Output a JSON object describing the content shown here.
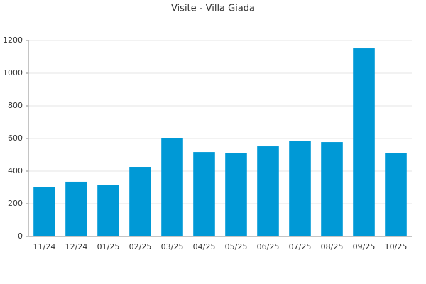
{
  "chart_data": {
    "type": "bar",
    "title": "Visite - Villa Giada",
    "categories": [
      "11/24",
      "12/24",
      "01/25",
      "02/25",
      "03/25",
      "04/25",
      "05/25",
      "06/25",
      "07/25",
      "08/25",
      "09/25",
      "10/25"
    ],
    "values": [
      304,
      335,
      317,
      426,
      604,
      517,
      513,
      552,
      583,
      578,
      1152,
      513
    ],
    "color": "#0099d6",
    "ylim": [
      0,
      1200
    ],
    "yticks": [
      0,
      200,
      400,
      600,
      800,
      1000,
      1200
    ],
    "grid": true
  }
}
